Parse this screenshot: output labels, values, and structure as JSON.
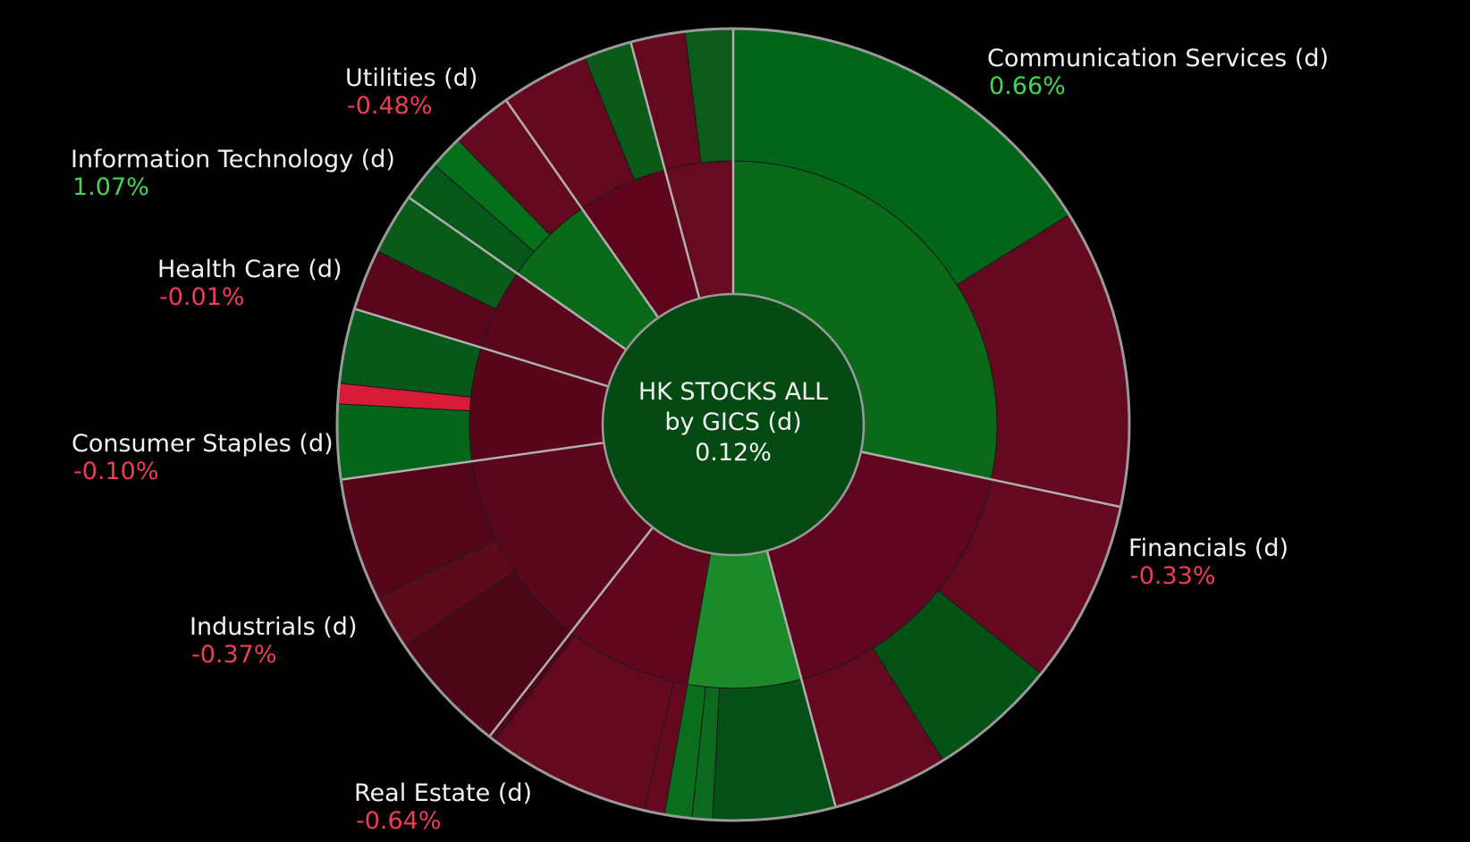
{
  "chart_data": {
    "type": "sunburst",
    "center": {
      "line1": "HK STOCKS ALL",
      "line2": "by GICS (d)",
      "value": "0.12%",
      "color": "#054a12"
    },
    "colors": {
      "positive_label": "#46d553",
      "negative_label": "#ec3e55",
      "background": "#000000"
    },
    "sectors": [
      {
        "name": "Communication Services (d)",
        "change": "0.66%",
        "value_pct": 0.66,
        "span": [
          0,
          102
        ],
        "inner_color": "#0b6a1a",
        "outer": [
          {
            "span": [
              0,
              58
            ],
            "color": "#02661a"
          },
          {
            "span": [
              58,
              102
            ],
            "color": "#650920"
          }
        ]
      },
      {
        "name": "Financials (d)",
        "change": "-0.33%",
        "value_pct": -0.33,
        "span": [
          102,
          165
        ],
        "inner_color": "#600620",
        "outer": [
          {
            "span": [
              102,
              129
            ],
            "color": "#650920"
          },
          {
            "span": [
              129,
              148
            ],
            "color": "#055217"
          },
          {
            "span": [
              148,
              165
            ],
            "color": "#650920"
          }
        ]
      },
      {
        "name": "Real Estate (d)",
        "change": "-0.64%",
        "value_pct": -0.64,
        "span": [
          165,
          190
        ],
        "inner_color": "#1a8a2a",
        "outer": [
          {
            "span": [
              165,
              183
            ],
            "color": "#045016"
          },
          {
            "span": [
              183,
              186
            ],
            "color": "#0c6a1e"
          },
          {
            "span": [
              186,
              190
            ],
            "color": "#0b6e1d"
          }
        ]
      },
      {
        "name": "Real Estate (d)",
        "change": "",
        "value_pct": -0.64,
        "span": [
          190,
          218
        ],
        "inner_color": "#62061f",
        "outer": [
          {
            "span": [
              190,
              193
            ],
            "color": "#650920"
          },
          {
            "span": [
              193,
              217
            ],
            "color": "#650920"
          },
          {
            "span": [
              217,
              218
            ],
            "color": "#500618"
          }
        ]
      },
      {
        "name": "Industrials (d)",
        "change": "-0.37%",
        "value_pct": -0.37,
        "span": [
          218,
          262
        ],
        "inner_color": "#5a061c",
        "outer": [
          {
            "span": [
              218,
              236
            ],
            "color": "#4d0617"
          },
          {
            "span": [
              236,
              244
            ],
            "color": "#5e0a1d"
          },
          {
            "span": [
              244,
              262
            ],
            "color": "#55061a"
          }
        ]
      },
      {
        "name": "Consumer Staples (d)",
        "change": "-0.10%",
        "value_pct": -0.1,
        "span": [
          262,
          287
        ],
        "inner_color": "#580619",
        "outer": [
          {
            "span": [
              262,
              273
            ],
            "color": "#05661a"
          },
          {
            "span": [
              273,
              276
            ],
            "color": "#d81b38"
          },
          {
            "span": [
              276,
              287
            ],
            "color": "#07591a"
          }
        ]
      },
      {
        "name": "Health Care (d)",
        "change": "-0.01%",
        "value_pct": -0.01,
        "span": [
          287,
          305
        ],
        "inner_color": "#5a061c",
        "outer": [
          {
            "span": [
              287,
              296
            ],
            "color": "#5a061c"
          },
          {
            "span": [
              296,
              305
            ],
            "color": "#0a5a1a"
          }
        ]
      },
      {
        "name": "Information Technology (d)",
        "change": "1.07%",
        "value_pct": 1.07,
        "span": [
          305,
          325
        ],
        "inner_color": "#0b6a1a",
        "outer": [
          {
            "span": [
              305,
              311
            ],
            "color": "#07561a"
          },
          {
            "span": [
              311,
              316
            ],
            "color": "#05701c"
          },
          {
            "span": [
              316,
              325
            ],
            "color": "#650920"
          }
        ]
      },
      {
        "name": "Utilities (d)",
        "change": "-0.48%",
        "value_pct": -0.48,
        "span": [
          325,
          345
        ],
        "inner_color": "#5f061e",
        "outer": [
          {
            "span": [
              325,
              338
            ],
            "color": "#650920"
          },
          {
            "span": [
              338,
              345
            ],
            "color": "#0c5a1a"
          }
        ]
      },
      {
        "name": "Utilities (d)",
        "change": "",
        "value_pct": -0.48,
        "span": [
          345,
          360
        ],
        "inner_color": "#660b22",
        "outer": [
          {
            "span": [
              345,
              353
            ],
            "color": "#650920"
          },
          {
            "span": [
              353,
              360
            ],
            "color": "#0d5b1a"
          }
        ]
      }
    ],
    "labels": [
      {
        "name": "Communication Services (d)",
        "change": "0.66%",
        "sign": "pos",
        "anchor": "top-right"
      },
      {
        "name": "Financials (d)",
        "change": "-0.33%",
        "sign": "neg",
        "anchor": "right"
      },
      {
        "name": "Real Estate (d)",
        "change": "-0.64%",
        "sign": "neg",
        "anchor": "bottom"
      },
      {
        "name": "Industrials (d)",
        "change": "-0.37%",
        "sign": "neg",
        "anchor": "bottom-left"
      },
      {
        "name": "Consumer Staples (d)",
        "change": "-0.10%",
        "sign": "neg",
        "anchor": "left"
      },
      {
        "name": "Health Care (d)",
        "change": "-0.01%",
        "sign": "neg",
        "anchor": "left"
      },
      {
        "name": "Information Technology (d)",
        "change": "1.07%",
        "sign": "pos",
        "anchor": "top-left"
      },
      {
        "name": "Utilities (d)",
        "change": "-0.48%",
        "sign": "neg",
        "anchor": "top-left"
      }
    ]
  }
}
